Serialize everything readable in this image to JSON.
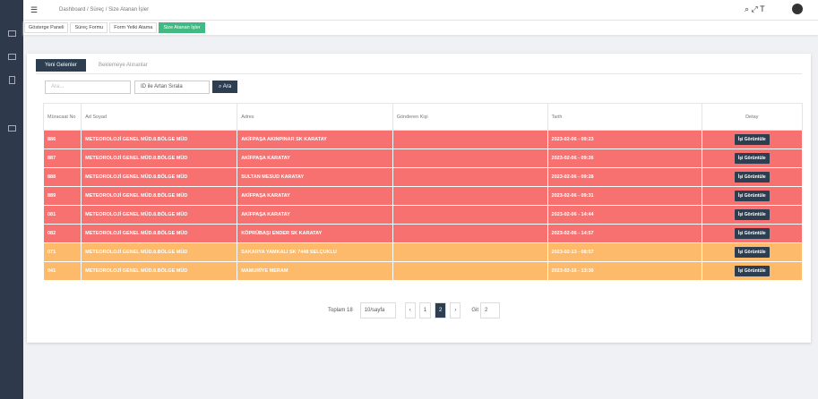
{
  "breadcrumb": [
    "Dashboard",
    "Süreç",
    "Size Atanan İşler"
  ],
  "tabs": [
    "Gösterge Paneli",
    "Süreç Formu",
    "Form Yetki Atama",
    "Size Atanan İşler"
  ],
  "inner_tabs": [
    "Yeni Gelenler",
    "Beklemeye Alınanlar"
  ],
  "search": {
    "placeholder": "Ara...",
    "sort": "ID ile Artan Sırala",
    "button": "Ara"
  },
  "table": {
    "headers": [
      "Müracaat No",
      "Ad Soyad",
      "Adres",
      "Gönderen Kişi",
      "Tarih",
      "Detay"
    ],
    "action": "İşi Görüntüle",
    "rows": [
      {
        "color": "#f87171",
        "cells": [
          "886",
          "METEOROLOJİ GENEL MÜD.8.BÖLGE MÜD",
          "AKİFPAŞA AKINPINAR SK KARATAY",
          "",
          "2023-02-06 - 09:23"
        ]
      },
      {
        "color": "#f87171",
        "cells": [
          "887",
          "METEOROLOJİ GENEL MÜD.8.BÖLGE MÜD",
          "AKİFPAŞA KARATAY",
          "",
          "2023-02-06 - 09:26"
        ]
      },
      {
        "color": "#f87171",
        "cells": [
          "888",
          "METEOROLOJİ GENEL MÜD.8.BÖLGE MÜD",
          "SULTAN MESUD KARATAY",
          "",
          "2023-02-06 - 09:28"
        ]
      },
      {
        "color": "#f87171",
        "cells": [
          "889",
          "METEOROLOJİ GENEL MÜD.8.BÖLGE MÜD",
          "AKİFPAŞA KARATAY",
          "",
          "2023-02-06 - 09:31"
        ]
      },
      {
        "color": "#f87171",
        "cells": [
          "081",
          "METEOROLOJİ GENEL MÜD.8.BÖLGE MÜD",
          "AKİFPAŞA KARATAY",
          "",
          "2023-02-06 - 14:44"
        ]
      },
      {
        "color": "#f87171",
        "cells": [
          "082",
          "METEOROLOJİ GENEL MÜD.8.BÖLGE MÜD",
          "KÖPRÜBAŞI ENDER SK KARATAY",
          "",
          "2023-02-06 - 14:57"
        ]
      },
      {
        "color": "#fdba6b",
        "cells": [
          "071",
          "METEOROLOJİ GENEL MÜD.8.BÖLGE MÜD",
          "SAKARYA YAMKALI SK 7448 SELÇUKLU",
          "",
          "2023-02-13 - 08:57"
        ]
      },
      {
        "color": "#fdba6b",
        "cells": [
          "041",
          "METEOROLOJİ GENEL MÜD.8.BÖLGE MÜD",
          "MAMURİYE MERAM",
          "",
          "2023-02-16 - 13:30"
        ]
      }
    ]
  },
  "pagination": {
    "total": "Toplam 18",
    "page_size": "10/sayfa",
    "pages": [
      "1",
      "2"
    ],
    "current": "2",
    "goto": "Git",
    "goto_value": "2"
  }
}
